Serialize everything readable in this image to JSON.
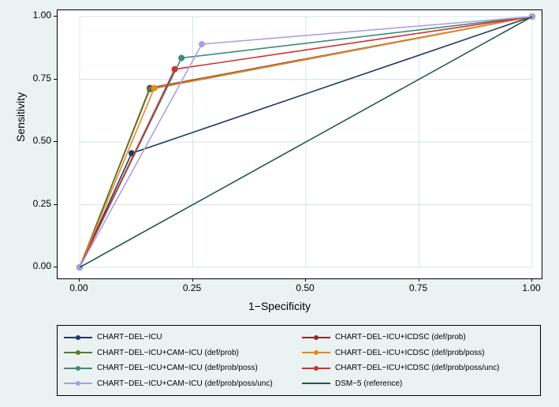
{
  "chart": {
    "type": "roc-line",
    "x_axis": {
      "title": "1−Specificity",
      "min": 0.0,
      "max": 1.0,
      "ticks": [
        0.0,
        0.25,
        0.5,
        0.75,
        1.0
      ]
    },
    "y_axis": {
      "title": "Sensitivity",
      "min": 0.0,
      "max": 1.0,
      "ticks": [
        0.0,
        0.25,
        0.5,
        0.75,
        1.0
      ]
    },
    "background_color": "#eaf2f2",
    "plot_background": "#ffffff",
    "grid_color": "#d6e4e4",
    "label_fontsize": 12,
    "title_fontsize": 14,
    "line_width": 1.6,
    "marker_radius": 4,
    "series": [
      {
        "name": "CHART−DEL−ICU",
        "color": "#1f3a63",
        "points": [
          [
            0.0,
            0.0
          ],
          [
            0.115,
            0.455
          ],
          [
            1.0,
            1.0
          ]
        ]
      },
      {
        "name": "CHART−DEL−ICU+ICDSC (def/prob)",
        "color": "#8c2a2a",
        "points": [
          [
            0.0,
            0.0
          ],
          [
            0.155,
            0.715
          ],
          [
            1.0,
            1.0
          ]
        ]
      },
      {
        "name": "CHART−DEL−ICU+CAM−ICU (def/prob)",
        "color": "#5c7a2f",
        "points": [
          [
            0.0,
            0.0
          ],
          [
            0.155,
            0.71
          ],
          [
            1.0,
            1.0
          ]
        ]
      },
      {
        "name": "CHART−DEL−ICU+ICDSC (def/prob/poss)",
        "color": "#e58a1f",
        "points": [
          [
            0.0,
            0.0
          ],
          [
            0.165,
            0.715
          ],
          [
            1.0,
            1.0
          ]
        ]
      },
      {
        "name": "CHART−DEL−ICU+CAM−ICU (def/prob/poss)",
        "color": "#3f8a78",
        "points": [
          [
            0.0,
            0.0
          ],
          [
            0.225,
            0.835
          ],
          [
            1.0,
            1.0
          ]
        ]
      },
      {
        "name": "CHART−DEL−ICU+ICDSC (def/prob/poss/unc)",
        "color": "#d03030",
        "points": [
          [
            0.0,
            0.0
          ],
          [
            0.21,
            0.79
          ],
          [
            1.0,
            1.0
          ]
        ]
      },
      {
        "name": "CHART−DEL−ICU+CAM−ICU (def/prob/poss/unc)",
        "color": "#a9a0e6",
        "points": [
          [
            0.0,
            0.0
          ],
          [
            0.27,
            0.89
          ],
          [
            1.0,
            1.0
          ]
        ]
      },
      {
        "name": "DSM−5 (reference)",
        "color": "#1f5a50",
        "points": [
          [
            0.0,
            0.0
          ],
          [
            1.0,
            1.0
          ]
        ],
        "marker": false
      }
    ],
    "legend_order": [
      0,
      1,
      2,
      3,
      4,
      5,
      6,
      7
    ]
  }
}
